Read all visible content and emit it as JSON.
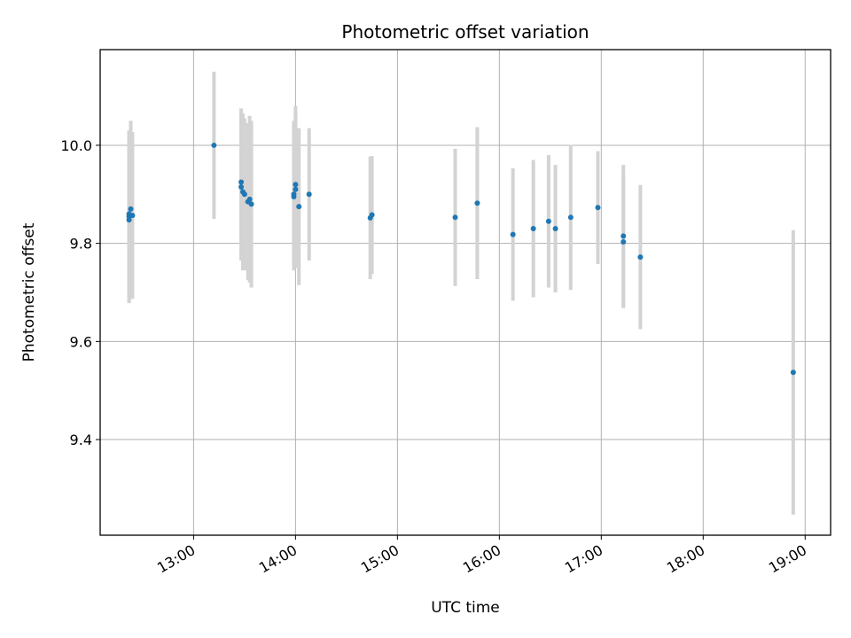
{
  "chart_data": {
    "type": "scatter",
    "title": "Photometric offset variation",
    "xlabel": "UTC time",
    "ylabel": "Photometric offset",
    "xlim": [
      "12:05",
      "19:15"
    ],
    "ylim": [
      9.205,
      10.195
    ],
    "x_ticks": [
      "13:00",
      "14:00",
      "15:00",
      "16:00",
      "17:00",
      "18:00",
      "19:00"
    ],
    "y_ticks": [
      9.4,
      9.6,
      9.8,
      10.0
    ],
    "grid": true,
    "colors": {
      "points": "#1f77b4",
      "errorbars": "#d3d3d3",
      "grid": "#b0b0b0"
    },
    "points": [
      {
        "x": "12:22",
        "y": 9.848,
        "err": 0.17
      },
      {
        "x": "12:22",
        "y": 9.855,
        "err": 0.175
      },
      {
        "x": "12:22",
        "y": 9.86,
        "err": 0.17
      },
      {
        "x": "12:23",
        "y": 9.87,
        "err": 0.18
      },
      {
        "x": "12:24",
        "y": 9.857,
        "err": 0.17
      },
      {
        "x": "13:12",
        "y": 10.0,
        "err": 0.15
      },
      {
        "x": "13:28",
        "y": 9.925,
        "err": 0.15
      },
      {
        "x": "13:28",
        "y": 9.915,
        "err": 0.15
      },
      {
        "x": "13:29",
        "y": 9.905,
        "err": 0.16
      },
      {
        "x": "13:30",
        "y": 9.9,
        "err": 0.155
      },
      {
        "x": "13:32",
        "y": 9.885,
        "err": 0.16
      },
      {
        "x": "13:33",
        "y": 9.89,
        "err": 0.17
      },
      {
        "x": "13:34",
        "y": 9.88,
        "err": 0.17
      },
      {
        "x": "13:59",
        "y": 9.895,
        "err": 0.15
      },
      {
        "x": "13:59",
        "y": 9.9,
        "err": 0.15
      },
      {
        "x": "14:00",
        "y": 9.91,
        "err": 0.16
      },
      {
        "x": "14:00",
        "y": 9.92,
        "err": 0.16
      },
      {
        "x": "14:02",
        "y": 9.875,
        "err": 0.16
      },
      {
        "x": "14:08",
        "y": 9.9,
        "err": 0.135
      },
      {
        "x": "14:44",
        "y": 9.852,
        "err": 0.125
      },
      {
        "x": "14:45",
        "y": 9.858,
        "err": 0.12
      },
      {
        "x": "15:34",
        "y": 9.853,
        "err": 0.14
      },
      {
        "x": "15:47",
        "y": 9.882,
        "err": 0.155
      },
      {
        "x": "16:08",
        "y": 9.818,
        "err": 0.135
      },
      {
        "x": "16:20",
        "y": 9.83,
        "err": 0.14
      },
      {
        "x": "16:29",
        "y": 9.845,
        "err": 0.135
      },
      {
        "x": "16:33",
        "y": 9.83,
        "err": 0.13
      },
      {
        "x": "16:42",
        "y": 9.853,
        "err": 0.148
      },
      {
        "x": "16:58",
        "y": 9.873,
        "err": 0.115
      },
      {
        "x": "17:13",
        "y": 9.815,
        "err": 0.145
      },
      {
        "x": "17:13",
        "y": 9.803,
        "err": 0.135
      },
      {
        "x": "17:23",
        "y": 9.772,
        "err": 0.147
      },
      {
        "x": "18:53",
        "y": 9.537,
        "err": 0.29
      }
    ]
  }
}
